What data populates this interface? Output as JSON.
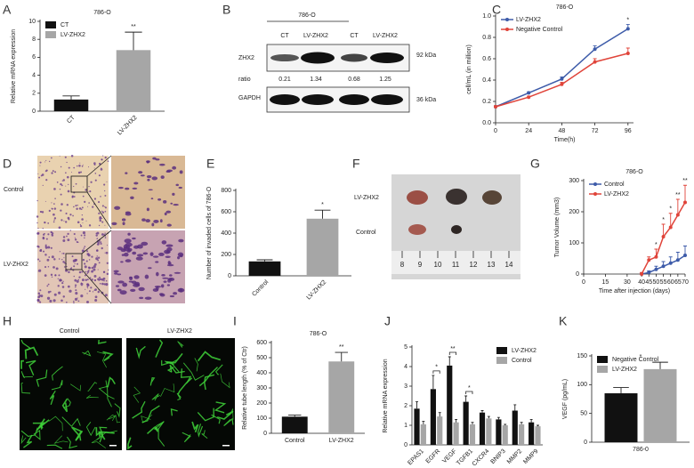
{
  "panel_labels": [
    "A",
    "B",
    "C",
    "D",
    "E",
    "F",
    "G",
    "H",
    "I",
    "J",
    "K"
  ],
  "chart_data": [
    {
      "type": "bar",
      "title": "786-O",
      "ylabel": "Relative mRNA expression",
      "categories": [
        "CT",
        "LV-ZHX2"
      ],
      "values": [
        1.3,
        6.8
      ],
      "errors": [
        0.4,
        2.0
      ],
      "colors": [
        "#111111",
        "#a6a6a6"
      ],
      "significance": [
        null,
        "**"
      ],
      "legend": "upper left",
      "rotate_labels": true,
      "ylim": [
        0,
        10
      ],
      "yticks": [
        0,
        2,
        4,
        6,
        8,
        10
      ]
    },
    {
      "type": "line",
      "title": "786-O",
      "xlabel": "Time(h)",
      "ylabel": "cell/mL (in million)",
      "x": [
        0,
        24,
        48,
        72,
        96
      ],
      "xlim": [
        0,
        100
      ],
      "xticks": [
        0,
        24,
        48,
        72,
        96
      ],
      "ylim": [
        0,
        1
      ],
      "yticks": [
        {
          "value": 0,
          "label": "0.0"
        },
        0.2,
        0.4,
        0.6,
        0.8,
        {
          "value": 1,
          "label": "1.0"
        }
      ],
      "legend": "upper left",
      "series": [
        {
          "name": "LV-ZHX2",
          "color": "#3d5ba9",
          "values": [
            0.15,
            0.28,
            0.41,
            0.69,
            0.88
          ],
          "errors": [
            0.01,
            0.01,
            0.02,
            0.03,
            0.04
          ],
          "significance": [
            null,
            null,
            null,
            null,
            "*"
          ]
        },
        {
          "name": "Negative Control",
          "color": "#e0443a",
          "values": [
            0.15,
            0.24,
            0.36,
            0.57,
            0.65
          ],
          "errors": [
            0.01,
            0.01,
            0.02,
            0.03,
            0.05
          ]
        }
      ]
    },
    {
      "type": "bar",
      "ylabel": "Number of invaded cells of 786-O",
      "categories": [
        "Control",
        "LV-ZHX2"
      ],
      "values": [
        135,
        535
      ],
      "errors": [
        15,
        80
      ],
      "colors": [
        "#111111",
        "#a6a6a6"
      ],
      "significance": [
        null,
        "*"
      ],
      "rotate_labels": true,
      "ylim": [
        0,
        800
      ],
      "yticks": [
        0,
        200,
        400,
        600,
        800
      ]
    },
    {
      "type": "line",
      "title": "786-O",
      "xlabel": "Time after injection (days)",
      "ylabel": "Tumor Volume (mm3)",
      "x": [
        40,
        45,
        50,
        55,
        60,
        65,
        70
      ],
      "xlim": [
        0,
        70
      ],
      "xticks": [
        0,
        15,
        30,
        40,
        45,
        50,
        55,
        60,
        65,
        70
      ],
      "ylim": [
        0,
        300
      ],
      "yticks": [
        0,
        100,
        200,
        300
      ],
      "legend": "upper left",
      "series": [
        {
          "name": "Control",
          "color": "#3d5ba9",
          "values": [
            0,
            5,
            15,
            25,
            35,
            45,
            60
          ],
          "errors": [
            3,
            5,
            10,
            15,
            20,
            25,
            30
          ]
        },
        {
          "name": "LV-ZHX2",
          "color": "#e0443a",
          "values": [
            0,
            45,
            55,
            120,
            150,
            190,
            230
          ],
          "errors": [
            5,
            10,
            25,
            40,
            45,
            50,
            55
          ],
          "significance": [
            null,
            null,
            "*",
            "*",
            "*",
            "**",
            "**"
          ]
        }
      ]
    },
    {
      "type": "bar",
      "title": "786-O",
      "ylabel": "Relative tube length  (% of Ctr)",
      "categories": [
        "Control",
        "LV-ZHX2"
      ],
      "values": [
        110,
        475
      ],
      "errors": [
        10,
        60
      ],
      "colors": [
        "#111111",
        "#a6a6a6"
      ],
      "significance": [
        null,
        "**"
      ],
      "ylim": [
        0,
        600
      ],
      "yticks": [
        0,
        100,
        200,
        300,
        400,
        500,
        600
      ]
    },
    {
      "type": "bar",
      "ylabel": "Relative mRNA expression",
      "categories": [
        "EPAS1",
        "EGFR",
        "VEGF",
        "TGFB1",
        "CXCR4",
        "BNIP3",
        "MMP2",
        "MMP9"
      ],
      "series": [
        {
          "name": "LV-ZHX2",
          "color": "#111111",
          "values": [
            1.85,
            2.85,
            4.05,
            2.2,
            1.65,
            1.3,
            1.75,
            1.15
          ],
          "errors": [
            0.35,
            0.7,
            0.45,
            0.3,
            0.1,
            0.1,
            0.3,
            0.15
          ]
        },
        {
          "name": "Control",
          "color": "#a6a6a6",
          "values": [
            1.05,
            1.45,
            1.15,
            1.05,
            1.35,
            1.0,
            1.05,
            0.95
          ],
          "errors": [
            0.15,
            0.2,
            0.15,
            0.1,
            0.1,
            0.05,
            0.1,
            0.05
          ]
        }
      ],
      "significance": [
        null,
        "*",
        "**",
        "*",
        null,
        null,
        null,
        null
      ],
      "rotate_labels": true,
      "legend": "upper right",
      "ylim": [
        0,
        5
      ],
      "yticks": [
        0,
        1,
        2,
        3,
        4,
        5
      ]
    },
    {
      "type": "bar",
      "ylabel": "VEGF (pg/mL)",
      "categories": [
        "786-0"
      ],
      "series": [
        {
          "name": "Negative Control",
          "color": "#111111",
          "values": [
            85
          ],
          "errors": [
            10
          ]
        },
        {
          "name": "LV-ZHX2",
          "color": "#a6a6a6",
          "values": [
            127
          ],
          "errors": [
            12
          ]
        }
      ],
      "significance": [
        "*"
      ],
      "legend": "upper left",
      "ylim": [
        0,
        150
      ],
      "yticks": [
        0,
        50,
        100,
        150
      ]
    }
  ],
  "blot": {
    "title": "786-O",
    "lanes": [
      "CT",
      "LV-ZHX2",
      "CT",
      "LV-ZHX2"
    ],
    "target": "ZHX2",
    "target_size": "92 kDa",
    "ratio_label": "ratio",
    "ratios": [
      "0.21",
      "1.34",
      "0.68",
      "1.25"
    ],
    "control": "GAPDH",
    "control_size": "36 kDa"
  },
  "transwell": {
    "rows": [
      "Control",
      "LV-ZHX2"
    ]
  },
  "tumors": {
    "rows": [
      "LV-ZHX2",
      "Control"
    ],
    "ruler": [
      "8",
      "9",
      "10",
      "11",
      "12",
      "13",
      "14"
    ]
  },
  "tube": {
    "columns": [
      "Control",
      "LV-ZHX2"
    ]
  }
}
